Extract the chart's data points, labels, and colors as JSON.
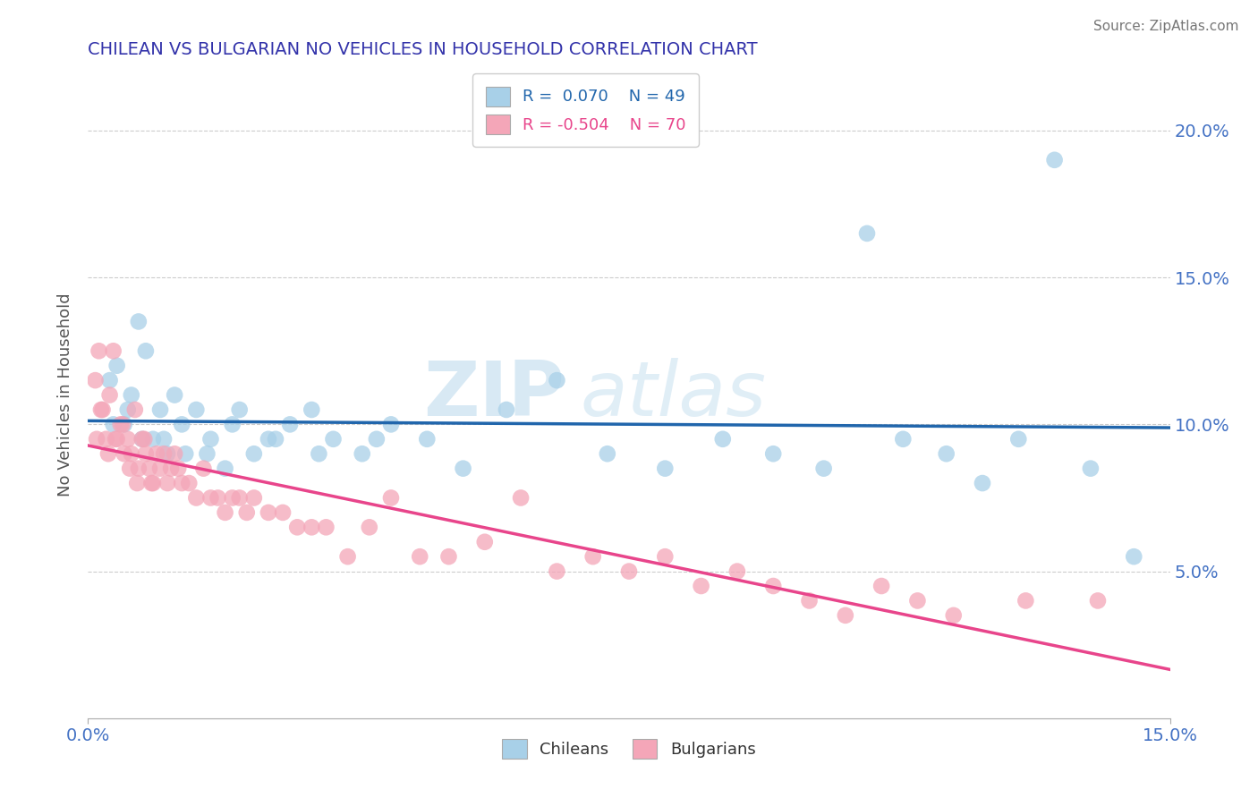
{
  "title": "CHILEAN VS BULGARIAN NO VEHICLES IN HOUSEHOLD CORRELATION CHART",
  "source": "Source: ZipAtlas.com",
  "ylabel": "No Vehicles in Household",
  "r_chilean": 0.07,
  "n_chilean": 49,
  "r_bulgarian": -0.504,
  "n_bulgarian": 70,
  "xlim": [
    0.0,
    15.0
  ],
  "ylim": [
    0.0,
    22.0
  ],
  "yticks": [
    5.0,
    10.0,
    15.0,
    20.0
  ],
  "xtick_labels": [
    "0.0%",
    "15.0%"
  ],
  "color_chilean": "#a8d0e8",
  "color_bulgarian": "#f4a6b8",
  "color_line_chilean": "#2166ac",
  "color_line_bulgarian": "#e8458b",
  "legend_labels": [
    "Chileans",
    "Bulgarians"
  ],
  "title_color": "#3333aa",
  "tick_color": "#4472c4",
  "source_color": "#777777",
  "chilean_x": [
    0.3,
    0.4,
    0.5,
    0.6,
    0.7,
    0.8,
    0.9,
    1.0,
    1.1,
    1.2,
    1.3,
    1.5,
    1.7,
    1.9,
    2.1,
    2.3,
    2.5,
    2.8,
    3.1,
    3.4,
    3.8,
    4.2,
    4.7,
    5.2,
    5.8,
    6.5,
    7.2,
    8.0,
    8.8,
    9.5,
    10.2,
    10.8,
    11.3,
    11.9,
    12.4,
    12.9,
    13.4,
    13.9,
    14.5,
    0.35,
    0.55,
    0.75,
    1.05,
    1.35,
    1.65,
    2.0,
    2.6,
    3.2,
    4.0
  ],
  "chilean_y": [
    11.5,
    12.0,
    10.0,
    11.0,
    13.5,
    12.5,
    9.5,
    10.5,
    9.0,
    11.0,
    10.0,
    10.5,
    9.5,
    8.5,
    10.5,
    9.0,
    9.5,
    10.0,
    10.5,
    9.5,
    9.0,
    10.0,
    9.5,
    8.5,
    10.5,
    11.5,
    9.0,
    8.5,
    9.5,
    9.0,
    8.5,
    16.5,
    9.5,
    9.0,
    8.0,
    9.5,
    19.0,
    8.5,
    5.5,
    10.0,
    10.5,
    9.5,
    9.5,
    9.0,
    9.0,
    10.0,
    9.5,
    9.0,
    9.5
  ],
  "bulgarian_x": [
    0.1,
    0.15,
    0.2,
    0.25,
    0.3,
    0.35,
    0.4,
    0.45,
    0.5,
    0.55,
    0.6,
    0.65,
    0.7,
    0.75,
    0.8,
    0.85,
    0.9,
    0.95,
    1.0,
    1.05,
    1.1,
    1.15,
    1.2,
    1.25,
    1.3,
    1.4,
    1.5,
    1.6,
    1.7,
    1.8,
    1.9,
    2.0,
    2.1,
    2.2,
    2.3,
    2.5,
    2.7,
    2.9,
    3.1,
    3.3,
    3.6,
    3.9,
    4.2,
    4.6,
    5.0,
    5.5,
    6.0,
    6.5,
    7.0,
    7.5,
    8.0,
    8.5,
    9.0,
    9.5,
    10.0,
    10.5,
    11.0,
    11.5,
    12.0,
    13.0,
    14.0,
    0.12,
    0.18,
    0.28,
    0.38,
    0.48,
    0.58,
    0.68,
    0.78,
    0.88
  ],
  "bulgarian_y": [
    11.5,
    12.5,
    10.5,
    9.5,
    11.0,
    12.5,
    9.5,
    10.0,
    9.0,
    9.5,
    9.0,
    10.5,
    8.5,
    9.5,
    9.0,
    8.5,
    8.0,
    9.0,
    8.5,
    9.0,
    8.0,
    8.5,
    9.0,
    8.5,
    8.0,
    8.0,
    7.5,
    8.5,
    7.5,
    7.5,
    7.0,
    7.5,
    7.5,
    7.0,
    7.5,
    7.0,
    7.0,
    6.5,
    6.5,
    6.5,
    5.5,
    6.5,
    7.5,
    5.5,
    5.5,
    6.0,
    7.5,
    5.0,
    5.5,
    5.0,
    5.5,
    4.5,
    5.0,
    4.5,
    4.0,
    3.5,
    4.5,
    4.0,
    3.5,
    4.0,
    4.0,
    9.5,
    10.5,
    9.0,
    9.5,
    10.0,
    8.5,
    8.0,
    9.5,
    8.0
  ]
}
